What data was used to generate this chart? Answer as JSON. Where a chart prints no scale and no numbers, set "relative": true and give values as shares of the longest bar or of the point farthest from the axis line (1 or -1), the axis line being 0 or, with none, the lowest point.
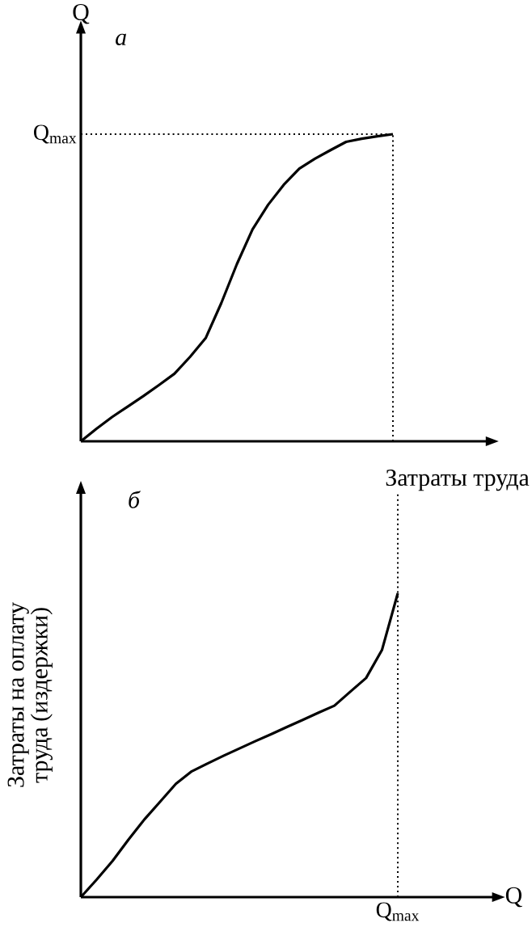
{
  "chart_data": [
    {
      "type": "line",
      "title": "а",
      "xlabel": "Затраты труда",
      "ylabel": "Q",
      "relative": true,
      "categories": [
        null,
        null,
        null,
        null,
        null,
        null,
        null,
        null,
        null,
        null,
        null,
        null,
        null,
        null,
        null,
        null,
        null,
        null,
        null,
        null,
        null
      ],
      "series": [
        {
          "color": "#000000",
          "values": [
            0,
            0.041,
            0.079,
            0.113,
            0.147,
            0.183,
            0.22,
            0.275,
            0.336,
            0.45,
            0.577,
            0.69,
            0.77,
            0.835,
            0.888,
            0.92,
            0.948,
            0.975,
            0.985,
            0.993,
            1
          ]
        }
      ],
      "ref_lines": [
        {
          "axis": "y",
          "value": 1,
          "label": "Q$_{max}$",
          "line_style": "dotted"
        },
        {
          "axis": "x",
          "line_style": "dotted"
        }
      ]
    },
    {
      "type": "line",
      "title": "б",
      "xlabel": "Q",
      "ylabel": "Затраты на оплату труда (издержки)",
      "relative": true,
      "categories": [
        null,
        null,
        null,
        null,
        null,
        null,
        null,
        null,
        null,
        null,
        null,
        null,
        null,
        null,
        null,
        null,
        null,
        null,
        null,
        null,
        null
      ],
      "series": [
        {
          "color": "#000000",
          "values": [
            0,
            0.058,
            0.119,
            0.189,
            0.255,
            0.314,
            0.373,
            0.414,
            0.44,
            0.465,
            0.489,
            0.513,
            0.536,
            0.56,
            0.583,
            0.607,
            0.63,
            0.676,
            0.721,
            0.813,
            1
          ]
        }
      ],
      "ref_lines": [
        {
          "axis": "x",
          "label": "Q$_{max}$",
          "line_style": "dotted"
        }
      ]
    }
  ]
}
